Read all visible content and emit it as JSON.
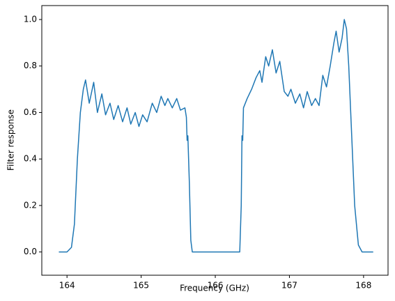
{
  "chart_data": {
    "type": "line",
    "xlabel": "Frequency (GHz)",
    "ylabel": "Filter response",
    "x": [
      163.89,
      164.0,
      164.06,
      164.1,
      164.14,
      164.18,
      164.22,
      164.25,
      164.3,
      164.36,
      164.41,
      164.47,
      164.52,
      164.58,
      164.63,
      164.69,
      164.75,
      164.81,
      164.86,
      164.92,
      164.97,
      165.02,
      165.08,
      165.15,
      165.21,
      165.27,
      165.32,
      165.36,
      165.42,
      165.48,
      165.53,
      165.59,
      165.61,
      165.62,
      165.63,
      165.65,
      165.67,
      165.69,
      166.33,
      166.35,
      166.36,
      166.37,
      166.38,
      166.43,
      166.49,
      166.55,
      166.6,
      166.63,
      166.68,
      166.72,
      166.77,
      166.82,
      166.87,
      166.93,
      166.98,
      167.02,
      167.08,
      167.14,
      167.19,
      167.24,
      167.3,
      167.35,
      167.4,
      167.45,
      167.5,
      167.55,
      167.6,
      167.63,
      167.67,
      167.71,
      167.74,
      167.77,
      167.8,
      167.84,
      167.88,
      167.93,
      167.98,
      168.13
    ],
    "series": [
      {
        "color": "#1f77b4",
        "values": [
          0,
          0,
          0.02,
          0.12,
          0.4,
          0.6,
          0.7,
          0.74,
          0.64,
          0.73,
          0.6,
          0.68,
          0.59,
          0.64,
          0.57,
          0.63,
          0.56,
          0.62,
          0.55,
          0.6,
          0.54,
          0.59,
          0.56,
          0.64,
          0.6,
          0.67,
          0.63,
          0.66,
          0.62,
          0.66,
          0.61,
          0.62,
          0.58,
          0.48,
          0.5,
          0.3,
          0.05,
          0,
          0,
          0.2,
          0.5,
          0.48,
          0.62,
          0.66,
          0.7,
          0.75,
          0.78,
          0.73,
          0.84,
          0.8,
          0.87,
          0.77,
          0.82,
          0.69,
          0.67,
          0.7,
          0.64,
          0.68,
          0.62,
          0.69,
          0.63,
          0.66,
          0.63,
          0.76,
          0.71,
          0.8,
          0.9,
          0.95,
          0.86,
          0.92,
          1.0,
          0.96,
          0.8,
          0.5,
          0.2,
          0.03,
          0,
          0
        ]
      }
    ],
    "xlim": [
      163.66,
      168.33
    ],
    "xticks": [
      164,
      165,
      166,
      167,
      168
    ],
    "ylim": [
      -0.1,
      1.06
    ],
    "yticks": [
      {
        "value": 0,
        "label": "0.0"
      },
      0.2,
      0.4,
      0.6,
      0.8,
      {
        "value": 1,
        "label": "1.0"
      }
    ],
    "grid": false
  }
}
